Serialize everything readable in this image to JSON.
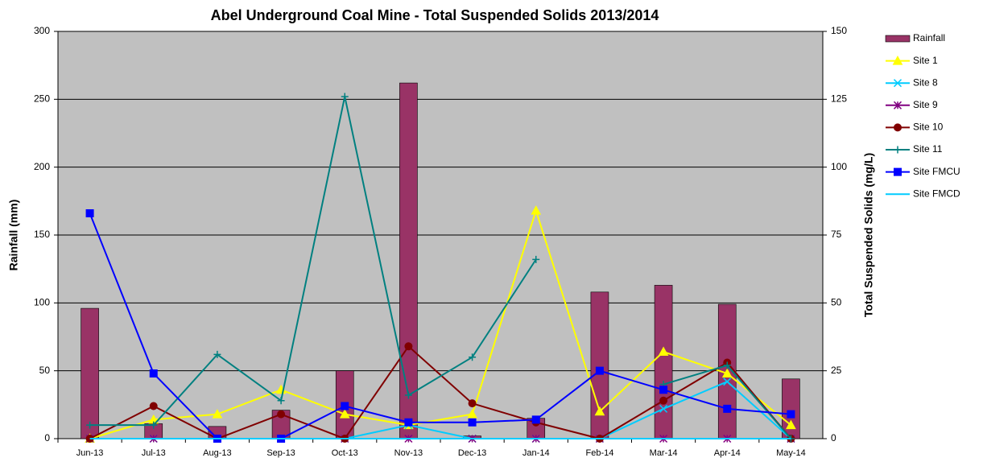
{
  "chart_data": {
    "type": "bar",
    "title": "Abel Underground Coal Mine - Total Suspended Solids 2013/2014",
    "y_label": "Rainfall (mm)",
    "y2_label": "Total Suspended Solids (mg/L)",
    "categories": [
      "Jun-13",
      "Jul-13",
      "Aug-13",
      "Sep-13",
      "Oct-13",
      "Nov-13",
      "Dec-13",
      "Jan-14",
      "Feb-14",
      "Mar-14",
      "Apr-14",
      "May-14"
    ],
    "ylim": [
      0,
      300
    ],
    "yticks": [
      0,
      50,
      100,
      150,
      200,
      250,
      300
    ],
    "y2lim": [
      0,
      150
    ],
    "y2ticks": [
      0,
      25,
      50,
      75,
      100,
      125,
      150
    ],
    "grid": true,
    "legend": "right",
    "series": [
      {
        "name": "Rainfall",
        "type": "bar",
        "color": "#993366",
        "values": [
          96,
          11,
          9,
          21,
          50,
          262,
          2,
          15,
          108,
          113,
          99,
          44
        ]
      },
      {
        "name": "Site 1",
        "type": "line",
        "axis": "y2",
        "marker": "triangle",
        "color": "#ffff00",
        "values": [
          0,
          7,
          9,
          18,
          9,
          5,
          9,
          84,
          10,
          32,
          24,
          5
        ]
      },
      {
        "name": "Site 8",
        "type": "line",
        "axis": "y2",
        "marker": "x",
        "color": "#00ccff",
        "values": [
          0,
          0,
          0,
          0,
          0,
          5,
          0,
          0,
          0,
          11,
          21,
          0
        ]
      },
      {
        "name": "Site 9",
        "type": "line",
        "axis": "y2",
        "marker": "star",
        "color": "#800080",
        "values": [
          0,
          0,
          0,
          0,
          0,
          0,
          0,
          0,
          0,
          0,
          0,
          0
        ]
      },
      {
        "name": "Site 10",
        "type": "line",
        "axis": "y2",
        "marker": "circle",
        "color": "#800000",
        "values": [
          0,
          12,
          0,
          9,
          0,
          34,
          13,
          6,
          0,
          14,
          28,
          0
        ]
      },
      {
        "name": "Site 11",
        "type": "line",
        "axis": "y2",
        "marker": "plus",
        "color": "#008080",
        "values": [
          5,
          5,
          31,
          14,
          126,
          16,
          30,
          66,
          null,
          20,
          27,
          0
        ]
      },
      {
        "name": "Site FMCU",
        "type": "line",
        "axis": "y2",
        "marker": "square",
        "color": "#0000ff",
        "values": [
          83,
          24,
          0,
          0,
          12,
          6,
          6,
          7,
          25,
          18,
          11,
          9
        ]
      },
      {
        "name": "Site FMCD",
        "type": "line",
        "axis": "y2",
        "marker": "dash",
        "color": "#00ccff",
        "values": [
          0,
          0,
          0,
          0,
          0,
          0,
          0,
          0,
          0,
          0,
          0,
          0
        ]
      }
    ]
  }
}
